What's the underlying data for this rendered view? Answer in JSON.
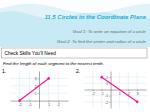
{
  "title": "11.5 Circles in the Coordinate Plane",
  "annotations": [
    "Goal 1: To write an equation of a circle",
    "Goal 2: To find the center and radius of a circle",
    "Check Skills You'll Need",
    "Find the length of each segment to the nearest tenth."
  ],
  "chart_data": [
    {
      "type": "line",
      "title": "1.",
      "x": [
        -2,
        1
      ],
      "values": [
        0,
        3
      ],
      "color": "#ff1493",
      "marker": "circle",
      "xlim": [
        -3,
        3
      ],
      "ylim": [
        -1,
        4
      ],
      "xticks": [
        -2,
        -1,
        1,
        2
      ],
      "yticks": [
        1,
        2,
        3
      ],
      "grid": true
    },
    {
      "type": "line",
      "title": "2.",
      "x": [
        -1,
        3
      ],
      "values": [
        2,
        -2
      ],
      "color": "#ff1493",
      "marker": "circle",
      "xlim": [
        -3,
        4
      ],
      "ylim": [
        -3,
        3
      ],
      "xticks": [
        -2,
        -1,
        1,
        2,
        3
      ],
      "yticks": [
        -2,
        -1,
        1,
        2
      ],
      "grid": true
    }
  ]
}
